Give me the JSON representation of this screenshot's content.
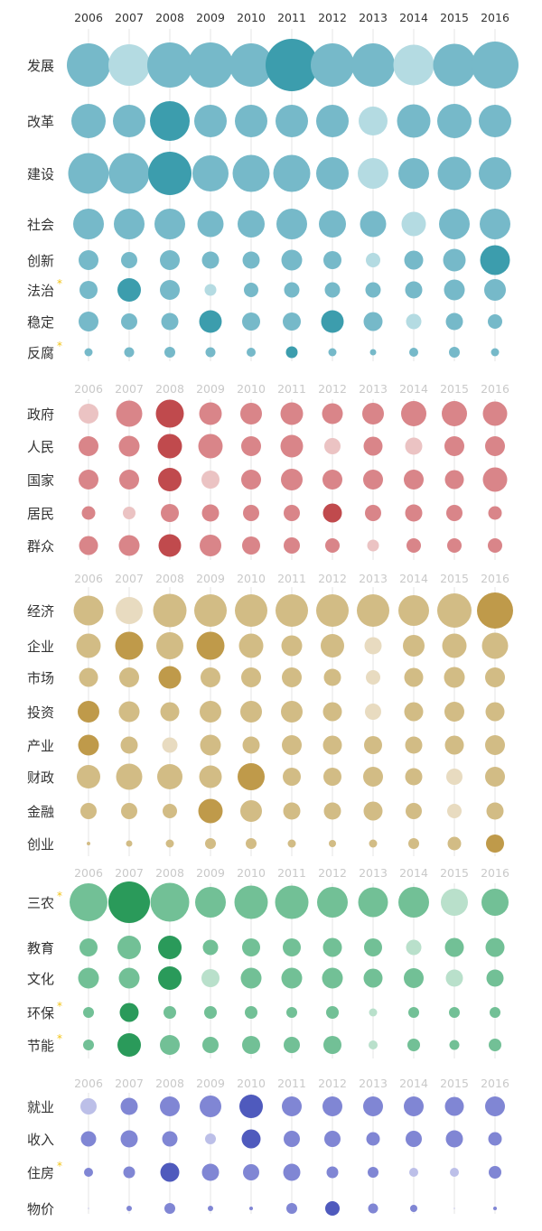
{
  "chart_data": {
    "type": "bubble-matrix",
    "years": [
      "2006",
      "2007",
      "2008",
      "2009",
      "2010",
      "2011",
      "2012",
      "2013",
      "2014",
      "2015",
      "2016"
    ],
    "groups": [
      {
        "name": "",
        "colors": {
          "light": "#b4dbe2",
          "mid": "#76b9c9",
          "dark": "#3c9dad"
        },
        "rows": [
          {
            "label": "发展",
            "starred": false,
            "sizes": [
              48,
              46,
              50,
              50,
              48,
              58,
              48,
              48,
              45,
              47,
              52
            ],
            "shades": [
              "mid",
              "light",
              "mid",
              "mid",
              "mid",
              "dark",
              "mid",
              "mid",
              "light",
              "mid",
              "mid"
            ]
          },
          {
            "label": "改革",
            "starred": false,
            "sizes": [
              38,
              36,
              44,
              36,
              36,
              36,
              36,
              32,
              37,
              38,
              36
            ],
            "shades": [
              "mid",
              "mid",
              "dark",
              "mid",
              "mid",
              "mid",
              "mid",
              "light",
              "mid",
              "mid",
              "mid"
            ]
          },
          {
            "label": "建设",
            "starred": false,
            "sizes": [
              45,
              45,
              48,
              40,
              41,
              41,
              36,
              34,
              34,
              37,
              36
            ],
            "shades": [
              "mid",
              "mid",
              "dark",
              "mid",
              "mid",
              "mid",
              "mid",
              "light",
              "mid",
              "mid",
              "mid"
            ]
          },
          {
            "label": "社会",
            "starred": false,
            "sizes": [
              34,
              34,
              34,
              29,
              30,
              34,
              30,
              29,
              27,
              34,
              34
            ],
            "shades": [
              "mid",
              "mid",
              "mid",
              "mid",
              "mid",
              "mid",
              "mid",
              "mid",
              "light",
              "mid",
              "mid"
            ]
          },
          {
            "label": "创新",
            "starred": false,
            "sizes": [
              22,
              18,
              22,
              19,
              19,
              23,
              20,
              16,
              21,
              25,
              33
            ],
            "shades": [
              "mid",
              "mid",
              "mid",
              "mid",
              "mid",
              "mid",
              "mid",
              "light",
              "mid",
              "mid",
              "dark"
            ]
          },
          {
            "label": "法治",
            "starred": true,
            "sizes": [
              20,
              26,
              22,
              13,
              16,
              17,
              17,
              17,
              19,
              23,
              24
            ],
            "shades": [
              "mid",
              "dark",
              "mid",
              "light",
              "mid",
              "mid",
              "mid",
              "mid",
              "mid",
              "mid",
              "mid"
            ]
          },
          {
            "label": "稳定",
            "starred": false,
            "sizes": [
              22,
              18,
              19,
              25,
              20,
              20,
              25,
              21,
              17,
              19,
              16
            ],
            "shades": [
              "mid",
              "mid",
              "mid",
              "dark",
              "mid",
              "mid",
              "dark",
              "mid",
              "light",
              "mid",
              "mid"
            ]
          },
          {
            "label": "反腐",
            "starred": true,
            "sizes": [
              9,
              11,
              12,
              11,
              10,
              13,
              9,
              7,
              10,
              12,
              9
            ],
            "shades": [
              "mid",
              "mid",
              "mid",
              "mid",
              "mid",
              "dark",
              "mid",
              "mid",
              "mid",
              "mid",
              "mid"
            ]
          }
        ]
      },
      {
        "name": "",
        "colors": {
          "light": "#ebc3c3",
          "mid": "#d98589",
          "dark": "#c04a4d"
        },
        "rows": [
          {
            "label": "政府",
            "starred": false,
            "sizes": [
              22,
              29,
              31,
              25,
              24,
              25,
              23,
              24,
              28,
              28,
              27
            ],
            "shades": [
              "light",
              "mid",
              "dark",
              "mid",
              "mid",
              "mid",
              "mid",
              "mid",
              "mid",
              "mid",
              "mid"
            ]
          },
          {
            "label": "人民",
            "starred": false,
            "sizes": [
              22,
              23,
              27,
              27,
              22,
              25,
              18,
              21,
              19,
              22,
              22
            ],
            "shades": [
              "mid",
              "mid",
              "dark",
              "mid",
              "mid",
              "mid",
              "light",
              "mid",
              "light",
              "mid",
              "mid"
            ]
          },
          {
            "label": "国家",
            "starred": false,
            "sizes": [
              22,
              22,
              26,
              20,
              22,
              24,
              22,
              22,
              22,
              21,
              27
            ],
            "shades": [
              "mid",
              "mid",
              "dark",
              "light",
              "mid",
              "mid",
              "mid",
              "mid",
              "mid",
              "mid",
              "mid"
            ]
          },
          {
            "label": "居民",
            "starred": false,
            "sizes": [
              15,
              14,
              20,
              19,
              18,
              18,
              21,
              18,
              19,
              18,
              15
            ],
            "shades": [
              "mid",
              "light",
              "mid",
              "mid",
              "mid",
              "mid",
              "dark",
              "mid",
              "mid",
              "mid",
              "mid"
            ]
          },
          {
            "label": "群众",
            "starred": false,
            "sizes": [
              21,
              23,
              25,
              24,
              20,
              18,
              16,
              13,
              16,
              16,
              16
            ],
            "shades": [
              "mid",
              "mid",
              "dark",
              "mid",
              "mid",
              "mid",
              "mid",
              "light",
              "mid",
              "mid",
              "mid"
            ]
          }
        ]
      },
      {
        "name": "",
        "colors": {
          "light": "#e8dbc0",
          "mid": "#d2bc85",
          "dark": "#bf9a4a"
        },
        "rows": [
          {
            "label": "经济",
            "starred": false,
            "sizes": [
              33,
              30,
              37,
              36,
              36,
              36,
              36,
              36,
              34,
              38,
              40
            ],
            "shades": [
              "mid",
              "light",
              "mid",
              "mid",
              "mid",
              "mid",
              "mid",
              "mid",
              "mid",
              "mid",
              "dark"
            ]
          },
          {
            "label": "企业",
            "starred": false,
            "sizes": [
              27,
              31,
              30,
              31,
              27,
              23,
              26,
              19,
              24,
              27,
              29
            ],
            "shades": [
              "mid",
              "dark",
              "mid",
              "dark",
              "mid",
              "mid",
              "mid",
              "light",
              "mid",
              "mid",
              "mid"
            ]
          },
          {
            "label": "市场",
            "starred": false,
            "sizes": [
              21,
              22,
              25,
              22,
              22,
              22,
              19,
              16,
              21,
              23,
              22
            ],
            "shades": [
              "mid",
              "mid",
              "dark",
              "mid",
              "mid",
              "mid",
              "mid",
              "light",
              "mid",
              "mid",
              "mid"
            ]
          },
          {
            "label": "投资",
            "starred": false,
            "sizes": [
              24,
              23,
              21,
              24,
              24,
              24,
              21,
              18,
              21,
              22,
              21
            ],
            "shades": [
              "dark",
              "mid",
              "mid",
              "mid",
              "mid",
              "mid",
              "mid",
              "light",
              "mid",
              "mid",
              "mid"
            ]
          },
          {
            "label": "产业",
            "starred": false,
            "sizes": [
              23,
              19,
              17,
              23,
              19,
              22,
              21,
              20,
              19,
              21,
              22
            ],
            "shades": [
              "dark",
              "mid",
              "light",
              "mid",
              "mid",
              "mid",
              "mid",
              "mid",
              "mid",
              "mid",
              "mid"
            ]
          },
          {
            "label": "财政",
            "starred": false,
            "sizes": [
              26,
              29,
              28,
              25,
              30,
              20,
              20,
              22,
              19,
              18,
              22
            ],
            "shades": [
              "mid",
              "mid",
              "mid",
              "mid",
              "dark",
              "mid",
              "mid",
              "mid",
              "mid",
              "light",
              "mid"
            ]
          },
          {
            "label": "金融",
            "starred": false,
            "sizes": [
              18,
              18,
              16,
              27,
              24,
              19,
              19,
              21,
              18,
              16,
              19
            ],
            "shades": [
              "mid",
              "mid",
              "mid",
              "dark",
              "mid",
              "mid",
              "mid",
              "mid",
              "mid",
              "light",
              "mid"
            ]
          },
          {
            "label": "创业",
            "starred": false,
            "sizes": [
              4,
              7,
              9,
              12,
              12,
              9,
              8,
              9,
              12,
              15,
              20
            ],
            "shades": [
              "mid",
              "mid",
              "mid",
              "mid",
              "mid",
              "mid",
              "mid",
              "mid",
              "mid",
              "mid",
              "dark"
            ]
          }
        ]
      },
      {
        "name": "",
        "colors": {
          "light": "#b9e0cb",
          "mid": "#72c096",
          "dark": "#2a9a5a"
        },
        "rows": [
          {
            "label": "三农",
            "starred": true,
            "sizes": [
              42,
              46,
              43,
              34,
              37,
              37,
              34,
              33,
              34,
              30,
              30
            ],
            "shades": [
              "mid",
              "dark",
              "mid",
              "mid",
              "mid",
              "mid",
              "mid",
              "mid",
              "mid",
              "light",
              "mid"
            ]
          },
          {
            "label": "教育",
            "starred": false,
            "sizes": [
              20,
              26,
              26,
              17,
              20,
              20,
              21,
              20,
              17,
              21,
              21
            ],
            "shades": [
              "mid",
              "mid",
              "dark",
              "mid",
              "mid",
              "mid",
              "mid",
              "mid",
              "light",
              "mid",
              "mid"
            ]
          },
          {
            "label": "文化",
            "starred": false,
            "sizes": [
              23,
              23,
              26,
              20,
              23,
              23,
              23,
              21,
              22,
              19,
              19
            ],
            "shades": [
              "mid",
              "mid",
              "dark",
              "light",
              "mid",
              "mid",
              "mid",
              "mid",
              "mid",
              "light",
              "mid"
            ]
          },
          {
            "label": "环保",
            "starred": true,
            "sizes": [
              12,
              21,
              14,
              14,
              14,
              12,
              14,
              9,
              12,
              12,
              12
            ],
            "shades": [
              "mid",
              "dark",
              "mid",
              "mid",
              "mid",
              "mid",
              "mid",
              "light",
              "mid",
              "mid",
              "mid"
            ]
          },
          {
            "label": "节能",
            "starred": true,
            "sizes": [
              12,
              26,
              22,
              18,
              20,
              18,
              20,
              10,
              14,
              11,
              14
            ],
            "shades": [
              "mid",
              "dark",
              "mid",
              "mid",
              "mid",
              "mid",
              "mid",
              "light",
              "mid",
              "mid",
              "mid"
            ]
          }
        ]
      },
      {
        "name": "",
        "colors": {
          "light": "#bcbfe8",
          "mid": "#8086d4",
          "dark": "#4f5abd"
        },
        "rows": [
          {
            "label": "就业",
            "starred": false,
            "sizes": [
              18,
              19,
              22,
              24,
              26,
              22,
              22,
              22,
              22,
              21,
              22
            ],
            "shades": [
              "light",
              "mid",
              "mid",
              "mid",
              "dark",
              "mid",
              "mid",
              "mid",
              "mid",
              "mid",
              "mid"
            ]
          },
          {
            "label": "收入",
            "starred": false,
            "sizes": [
              17,
              19,
              17,
              12,
              21,
              18,
              18,
              15,
              18,
              19,
              15
            ],
            "shades": [
              "mid",
              "mid",
              "mid",
              "light",
              "dark",
              "mid",
              "mid",
              "mid",
              "mid",
              "mid",
              "mid"
            ]
          },
          {
            "label": "住房",
            "starred": true,
            "sizes": [
              10,
              13,
              21,
              19,
              18,
              19,
              13,
              12,
              10,
              10,
              14
            ],
            "shades": [
              "mid",
              "mid",
              "dark",
              "mid",
              "mid",
              "mid",
              "mid",
              "mid",
              "light",
              "light",
              "mid"
            ]
          },
          {
            "label": "物价",
            "starred": false,
            "sizes": [
              1,
              6,
              12,
              6,
              4,
              12,
              16,
              11,
              8,
              1,
              4
            ],
            "shades": [
              "mid",
              "mid",
              "mid",
              "mid",
              "mid",
              "mid",
              "dark",
              "mid",
              "mid",
              "mid",
              "mid"
            ]
          }
        ]
      }
    ]
  }
}
